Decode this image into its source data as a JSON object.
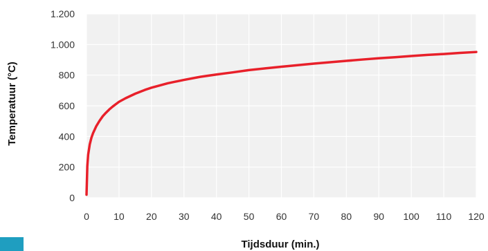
{
  "chart_data": {
    "type": "line",
    "title": "",
    "xlabel": "Tijdsduur (min.)",
    "ylabel": "Temperatuur (°C)",
    "xlim": [
      0,
      120
    ],
    "ylim": [
      0,
      1200
    ],
    "xticks": [
      0,
      10,
      20,
      30,
      40,
      50,
      60,
      70,
      80,
      90,
      100,
      110,
      120
    ],
    "yticks": [
      0,
      200,
      400,
      600,
      800,
      1000,
      1200
    ],
    "xtick_labels": [
      "0",
      "10",
      "20",
      "30",
      "40",
      "50",
      "60",
      "70",
      "80",
      "90",
      "100",
      "110",
      "120"
    ],
    "ytick_labels": [
      "0",
      "200",
      "400",
      "600",
      "800",
      "1.000",
      "1.200"
    ],
    "grid": true,
    "series": [
      {
        "color": "#e8202a",
        "x": [
          0,
          0.25,
          0.5,
          1,
          1.5,
          2,
          3,
          4,
          5,
          6,
          7,
          8,
          9,
          10,
          12,
          15,
          18,
          20,
          25,
          30,
          35,
          40,
          45,
          50,
          55,
          60,
          65,
          70,
          75,
          80,
          85,
          90,
          95,
          100,
          105,
          110,
          115,
          120
        ],
        "y": [
          20,
          209,
          281,
          349,
          391,
          421,
          467,
          502,
          532,
          555,
          576,
          594,
          610,
          626,
          649,
          679,
          704,
          718,
          747,
          769,
          789,
          804,
          818,
          833,
          844,
          855,
          865,
          875,
          884,
          893,
          902,
          910,
          917,
          925,
          932,
          938,
          945,
          951
        ]
      }
    ]
  },
  "colors": {
    "plot_background": "#f1f1f1",
    "grid": "#ffffff",
    "accent": "#1f9ec0"
  }
}
